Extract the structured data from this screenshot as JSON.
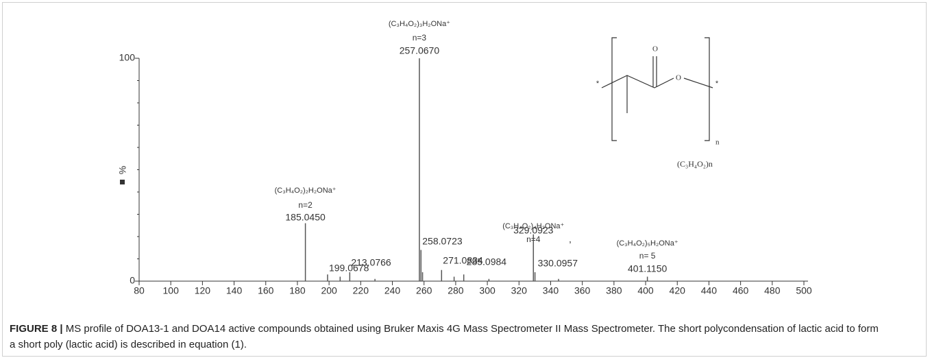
{
  "chart_data": {
    "type": "stem",
    "caption_label": "FIGURE 8 |",
    "caption": "MS profile of DOA13-1 and DOA14 active compounds obtained using Bruker Maxis 4G Mass Spectrometer II Mass Spectrometer. The short polycondensation of lactic acid to form a short poly (lactic acid) is described in equation (1).",
    "ylabel": "%",
    "x": [
      185.045,
      199.0678,
      207.0,
      213.0766,
      229.0,
      257.067,
      258.0723,
      259.07,
      271.0834,
      279.0,
      285.0984,
      301.0,
      329.0923,
      330.0957,
      345.0,
      401.115
    ],
    "values": [
      26,
      3,
      2,
      4,
      1,
      100,
      14,
      4,
      5,
      2,
      3,
      1,
      21,
      4,
      1,
      2
    ],
    "peak_labels": [
      "185.0450",
      "199.0678",
      null,
      "213.0766",
      null,
      "257.0670",
      "258.0723",
      null,
      "271.0834",
      null,
      "285.0984",
      null,
      "329.0923",
      "330.0957",
      null,
      "401.1150"
    ],
    "color": "#555555",
    "annotations": [
      {
        "formula": "(C₃H₄O₂)₃H₂ONa⁺",
        "n": "n=3"
      },
      {
        "formula": "(C₃H₄O₂)₂H₂ONa⁺",
        "n": "n=2"
      },
      {
        "formula": "(C₃H₄O₂)₄H₂ONa⁺",
        "n": "n=4"
      },
      {
        "formula": "(C₃H₄O₂)₅H₂ONa⁺",
        "n": "n= 5"
      }
    ],
    "stray_mark": ",",
    "structure": {
      "oxygen_carbonyl": "O",
      "oxygen_ester": "O",
      "end_left": "*",
      "end_right": "*",
      "subscript": "n",
      "formula": "(C₃H₄O₂)n"
    },
    "xlim": [
      80,
      500
    ],
    "xticks": [
      80,
      100,
      120,
      140,
      160,
      180,
      200,
      220,
      240,
      260,
      280,
      300,
      320,
      340,
      360,
      380,
      400,
      420,
      440,
      460,
      480,
      500
    ],
    "ylim": [
      0,
      100
    ],
    "yticks": [
      0,
      100
    ],
    "yminorticks": [
      10,
      20,
      30,
      40,
      50,
      60,
      70,
      80,
      90
    ]
  }
}
